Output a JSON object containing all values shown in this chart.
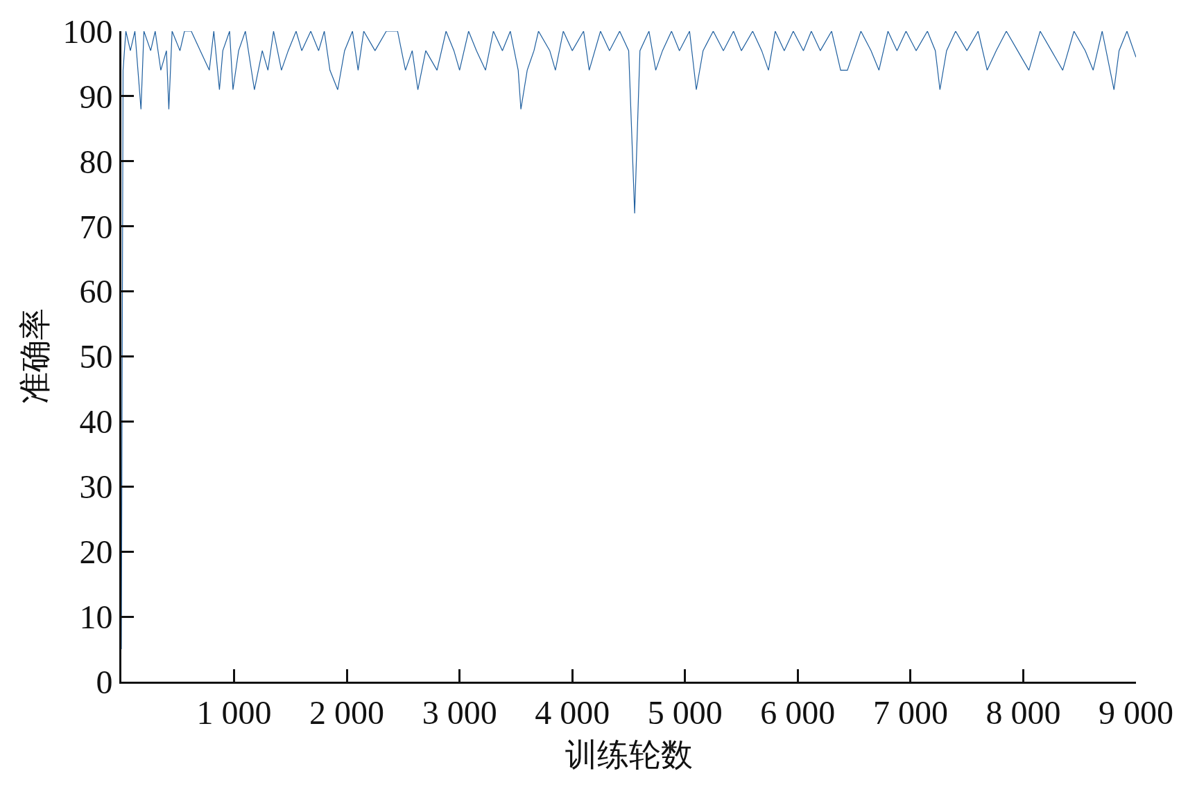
{
  "chart_data": {
    "type": "line",
    "xlabel": "训练轮数",
    "ylabel": "准确率",
    "x": [
      0,
      15,
      40,
      80,
      120,
      174,
      200,
      260,
      300,
      350,
      400,
      421,
      450,
      520,
      560,
      620,
      700,
      780,
      820,
      870,
      900,
      960,
      990,
      1040,
      1100,
      1180,
      1250,
      1300,
      1350,
      1420,
      1480,
      1550,
      1600,
      1680,
      1750,
      1800,
      1850,
      1919,
      1980,
      2050,
      2100,
      2150,
      2250,
      2350,
      2450,
      2520,
      2580,
      2630,
      2700,
      2800,
      2880,
      2950,
      3000,
      3080,
      3150,
      3230,
      3300,
      3380,
      3450,
      3520,
      3544,
      3600,
      3660,
      3700,
      3800,
      3850,
      3920,
      4000,
      4100,
      4150,
      4250,
      4330,
      4420,
      4500,
      4553,
      4600,
      4680,
      4740,
      4800,
      4880,
      4950,
      5040,
      5100,
      5160,
      5250,
      5340,
      5430,
      5500,
      5600,
      5680,
      5740,
      5800,
      5880,
      5960,
      6050,
      6120,
      6200,
      6300,
      6380,
      6440,
      6500,
      6560,
      6650,
      6720,
      6800,
      6880,
      6960,
      7050,
      7150,
      7220,
      7261,
      7320,
      7400,
      7500,
      7600,
      7680,
      7760,
      7850,
      7950,
      8050,
      8150,
      8250,
      8350,
      8450,
      8550,
      8620,
      8700,
      8805,
      8850,
      8920,
      9000
    ],
    "series": [
      {
        "color": "#1f5f9f",
        "values": [
          5,
          94,
          100,
          97,
          100,
          88,
          100,
          97,
          100,
          94,
          97,
          88,
          100,
          97,
          100,
          100,
          97,
          94,
          100,
          91,
          97,
          100,
          91,
          97,
          100,
          91,
          97,
          94,
          100,
          94,
          97,
          100,
          97,
          100,
          97,
          100,
          94,
          91,
          97,
          100,
          94,
          100,
          97,
          100,
          100,
          94,
          97,
          91,
          97,
          94,
          100,
          97,
          94,
          100,
          97,
          94,
          100,
          97,
          100,
          94,
          88,
          94,
          97,
          100,
          97,
          94,
          100,
          97,
          100,
          94,
          100,
          97,
          100,
          97,
          72,
          97,
          100,
          94,
          97,
          100,
          97,
          100,
          91,
          97,
          100,
          97,
          100,
          97,
          100,
          97,
          94,
          100,
          97,
          100,
          97,
          100,
          97,
          100,
          94,
          94,
          97,
          100,
          97,
          94,
          100,
          97,
          100,
          97,
          100,
          97,
          91,
          97,
          100,
          97,
          100,
          94,
          97,
          100,
          97,
          94,
          100,
          97,
          94,
          100,
          97,
          94,
          100,
          91,
          97,
          100,
          96
        ]
      }
    ],
    "xlim": [
      0,
      9000
    ],
    "ylim": [
      0,
      100
    ],
    "xticks": [
      {
        "value": 1000,
        "label": "1 000"
      },
      {
        "value": 2000,
        "label": "2 000"
      },
      {
        "value": 3000,
        "label": "3 000"
      },
      {
        "value": 4000,
        "label": "4 000"
      },
      {
        "value": 5000,
        "label": "5 000"
      },
      {
        "value": 6000,
        "label": "6 000"
      },
      {
        "value": 7000,
        "label": "7 000"
      },
      {
        "value": 8000,
        "label": "8 000"
      },
      {
        "value": 9000,
        "label": "9 000"
      }
    ],
    "yticks": [
      0,
      10,
      20,
      30,
      40,
      50,
      60,
      70,
      80,
      90,
      100
    ],
    "marker": "none",
    "line_style": "solid"
  }
}
